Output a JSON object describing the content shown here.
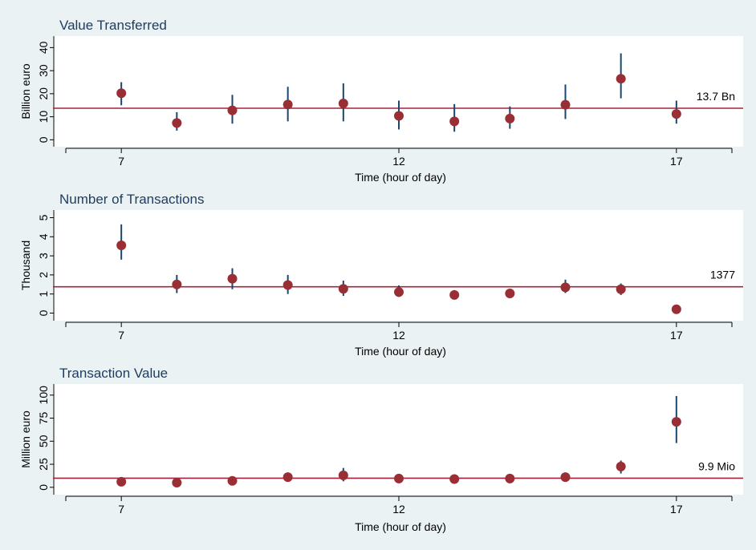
{
  "colors": {
    "background": "#eaf2f3",
    "plot_area": "#ffffff",
    "point": "#9a2e35",
    "ci_line": "#1a476f",
    "reference_line": "#a8203a",
    "title": "#1f3b5e"
  },
  "chart_data": [
    {
      "type": "scatter",
      "title": "Value Transferred",
      "xlabel": "Time (hour of day)",
      "ylabel": "Billion euro",
      "xticks": [
        7,
        12,
        17
      ],
      "xlim": [
        6,
        18
      ],
      "yticks": [
        0,
        10,
        20,
        30,
        40
      ],
      "ylim": [
        -3,
        45
      ],
      "grid": false,
      "series": [
        {
          "x": [
            7,
            8,
            9,
            10,
            11,
            12,
            13,
            14,
            15,
            16,
            17
          ],
          "y": [
            20.2,
            7.3,
            12.8,
            15.3,
            15.8,
            10.4,
            8.0,
            9.2,
            15.2,
            26.5,
            11.2
          ],
          "ci_low": [
            15.0,
            4.0,
            7.0,
            8.0,
            8.0,
            4.5,
            3.5,
            4.8,
            9.0,
            18.0,
            7.0
          ],
          "ci_high": [
            25.0,
            12.0,
            19.5,
            23.0,
            24.5,
            17.0,
            15.5,
            14.5,
            24.0,
            37.5,
            17.0
          ]
        }
      ],
      "reference_line": {
        "value": 13.7,
        "label": "13.7 Bn"
      }
    },
    {
      "type": "scatter",
      "title": "Number of Transactions",
      "xlabel": "Time (hour of day)",
      "ylabel": "Thousand",
      "xticks": [
        7,
        12,
        17
      ],
      "xlim": [
        6,
        18
      ],
      "yticks": [
        0,
        1,
        2,
        3,
        4,
        5
      ],
      "ylim": [
        -0.4,
        5.4
      ],
      "grid": false,
      "series": [
        {
          "x": [
            7,
            8,
            9,
            10,
            11,
            12,
            13,
            14,
            15,
            16,
            17
          ],
          "y": [
            3.55,
            1.5,
            1.8,
            1.47,
            1.27,
            1.1,
            0.95,
            1.03,
            1.35,
            1.25,
            0.2
          ],
          "ci_low": [
            2.8,
            1.05,
            1.25,
            1.0,
            0.9,
            0.85,
            0.75,
            0.85,
            1.05,
            0.95,
            0.15
          ],
          "ci_high": [
            4.65,
            2.0,
            2.35,
            2.0,
            1.7,
            1.45,
            1.2,
            1.25,
            1.75,
            1.55,
            0.28
          ]
        }
      ],
      "reference_line": {
        "value": 1.377,
        "label": "1377"
      }
    },
    {
      "type": "scatter",
      "title": "Transaction Value",
      "xlabel": "Time (hour of day)",
      "ylabel": "Million euro",
      "xticks": [
        7,
        12,
        17
      ],
      "xlim": [
        6,
        18
      ],
      "yticks": [
        0,
        25,
        50,
        75,
        100
      ],
      "ylim": [
        -8,
        112
      ],
      "grid": false,
      "series": [
        {
          "x": [
            7,
            8,
            9,
            10,
            11,
            12,
            13,
            14,
            15,
            16,
            17
          ],
          "y": [
            6.0,
            5.0,
            7.0,
            11.0,
            13.0,
            9.5,
            9.0,
            9.5,
            11.0,
            22.5,
            71.0
          ],
          "ci_low": [
            4.0,
            3.5,
            5.0,
            7.5,
            6.5,
            6.0,
            6.0,
            6.5,
            8.0,
            15.0,
            48.0
          ],
          "ci_high": [
            8.0,
            6.5,
            9.5,
            14.5,
            21.0,
            14.5,
            13.5,
            12.5,
            14.0,
            29.0,
            99.0
          ]
        }
      ],
      "reference_line": {
        "value": 9.9,
        "label": "9.9 Mio"
      }
    }
  ]
}
